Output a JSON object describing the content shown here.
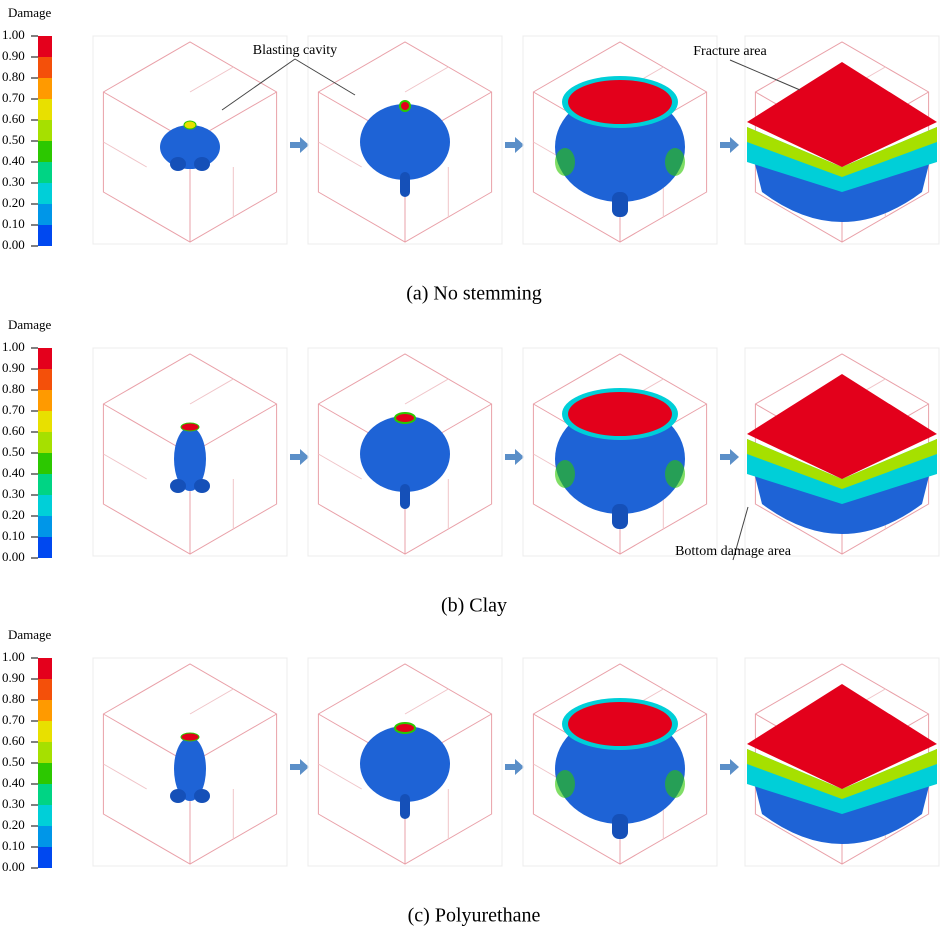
{
  "panels": [
    {
      "legend": {
        "title": "Damage",
        "ticks": [
          "1.00",
          "0.90",
          "0.80",
          "0.70",
          "0.60",
          "0.50",
          "0.40",
          "0.30",
          "0.20",
          "0.10",
          "0.00"
        ]
      },
      "annotations": [
        "Blasting cavity",
        "Fracture area"
      ],
      "caption": "(a) No stemming"
    },
    {
      "legend": {
        "title": "Damage",
        "ticks": [
          "1.00",
          "0.90",
          "0.80",
          "0.70",
          "0.60",
          "0.50",
          "0.40",
          "0.30",
          "0.20",
          "0.10",
          "0.00"
        ]
      },
      "annotations": [
        "Bottom damage area"
      ],
      "caption": "(b) Clay"
    },
    {
      "legend": {
        "title": "Damage",
        "ticks": [
          "1.00",
          "0.90",
          "0.80",
          "0.70",
          "0.60",
          "0.50",
          "0.40",
          "0.30",
          "0.20",
          "0.10",
          "0.00"
        ]
      },
      "annotations": [],
      "caption": "(c) Polyurethane"
    }
  ]
}
